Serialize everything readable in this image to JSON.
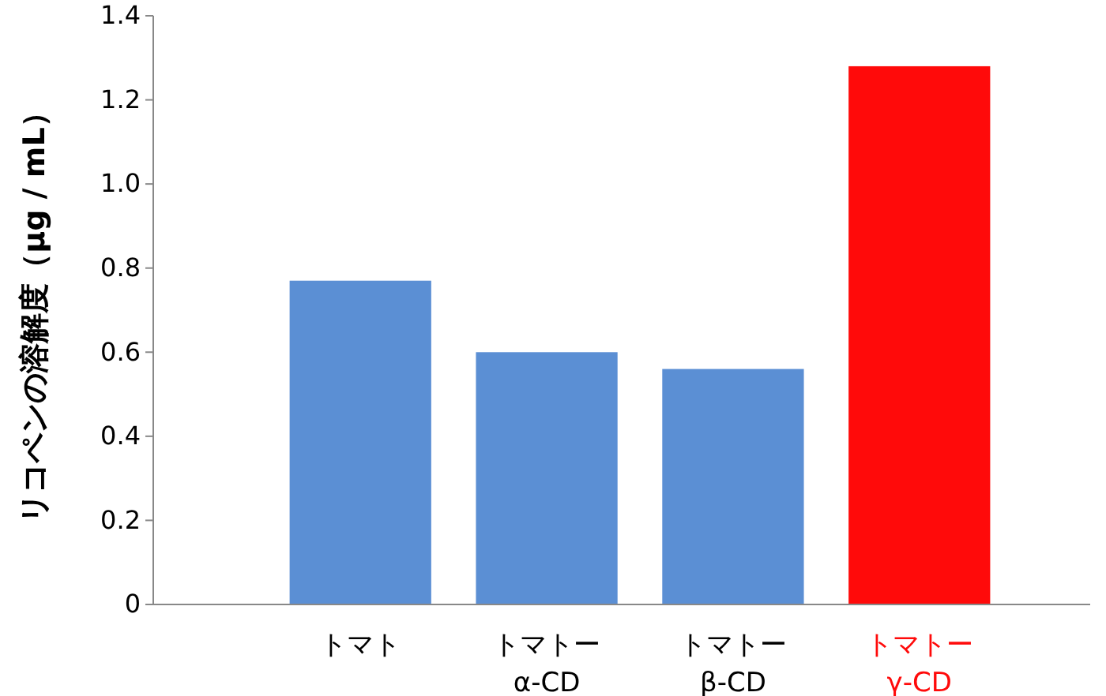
{
  "chart_data": {
    "type": "bar",
    "ylabel": "リコペンの溶解度（μg / mL）",
    "categories": [
      "トマト",
      "トマトー\nα-CD",
      "トマトー\nβ-CD",
      "トマトー\nγ-CD"
    ],
    "values": [
      0.77,
      0.6,
      0.56,
      1.28
    ],
    "colors": [
      "#5b8fd4",
      "#5b8fd4",
      "#5b8fd4",
      "#ff0a0a"
    ],
    "ylim": [
      0,
      1.4
    ],
    "yticks": [
      {
        "value": 0,
        "label": "0"
      },
      {
        "value": 0.2,
        "label": "0.2"
      },
      {
        "value": 0.4,
        "label": "0.4"
      },
      {
        "value": 0.6,
        "label": "0.6"
      },
      {
        "value": 0.8,
        "label": "0.8"
      },
      {
        "value": 1,
        "label": "1.0"
      },
      {
        "value": 1.2,
        "label": "1.2"
      },
      {
        "value": 1.4,
        "label": "1.4"
      }
    ],
    "grid": false
  }
}
